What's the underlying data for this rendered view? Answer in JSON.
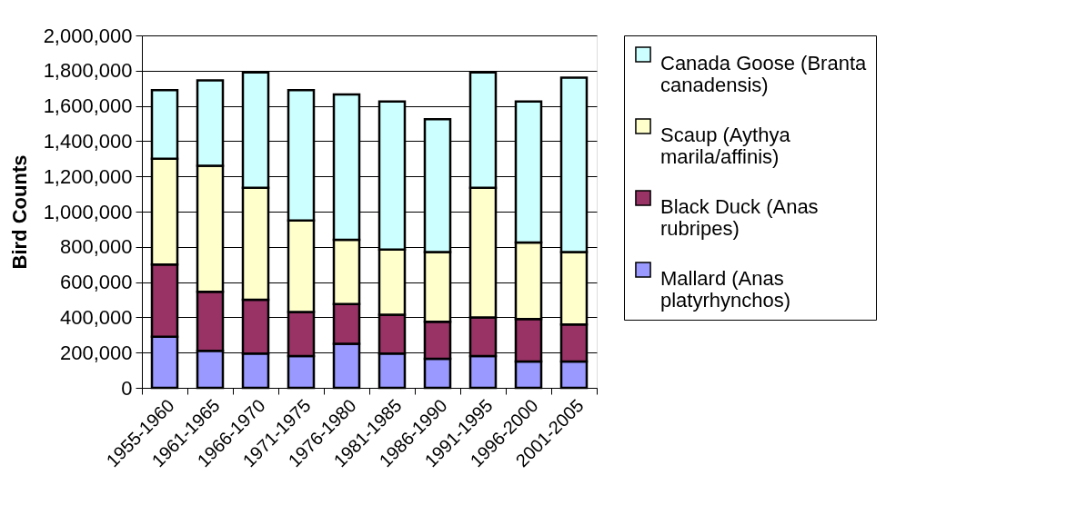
{
  "chart_data": {
    "type": "bar",
    "stacked": true,
    "ylabel": "Bird Counts",
    "categories": [
      "1955-1960",
      "1961-1965",
      "1966-1970",
      "1971-1975",
      "1976-1980",
      "1981-1985",
      "1986-1990",
      "1991-1995",
      "1996-2000",
      "2001-2005"
    ],
    "series": [
      {
        "name": "Mallard (Anas platyrhynchos)",
        "color": "#9999ff",
        "values": [
          290000,
          210000,
          195000,
          180000,
          250000,
          195000,
          165000,
          180000,
          150000,
          150000
        ]
      },
      {
        "name": "Black Duck (Anas rubripes)",
        "color": "#993366",
        "values": [
          410000,
          335000,
          305000,
          250000,
          225000,
          220000,
          210000,
          220000,
          240000,
          210000
        ]
      },
      {
        "name": "Scaup (Aythya marila/affinis)",
        "color": "#ffffcc",
        "values": [
          600000,
          715000,
          635000,
          520000,
          365000,
          370000,
          395000,
          735000,
          435000,
          410000
        ]
      },
      {
        "name": "Canada Goose (Branta canadensis)",
        "color": "#ccffff",
        "values": [
          390000,
          485000,
          655000,
          740000,
          825000,
          840000,
          755000,
          655000,
          800000,
          990000
        ]
      }
    ],
    "ylim": [
      0,
      2000000
    ],
    "yticks": [
      0,
      {
        "value": 200000,
        "label": "200,000"
      },
      {
        "value": 400000,
        "label": "400,000"
      },
      {
        "value": 600000,
        "label": "600,000"
      },
      {
        "value": 800000,
        "label": "800,000"
      },
      {
        "value": 1000000,
        "label": "1,000,000"
      },
      {
        "value": 1200000,
        "label": "1,200,000"
      },
      {
        "value": 1400000,
        "label": "1,400,000"
      },
      {
        "value": 1600000,
        "label": "1,600,000"
      },
      {
        "value": 1800000,
        "label": "1,800,000"
      },
      {
        "value": 2000000,
        "label": "2,000,000"
      }
    ],
    "grid": "y",
    "legend": "right"
  }
}
